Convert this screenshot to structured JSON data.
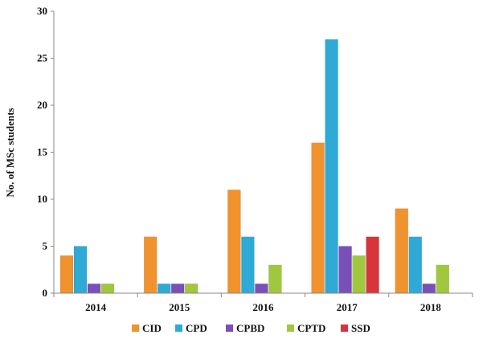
{
  "chart_data": {
    "type": "bar",
    "title": "",
    "xlabel": "",
    "ylabel": "No. of MSc students",
    "ylim": [
      0,
      30
    ],
    "yticks": [
      0,
      5,
      10,
      15,
      20,
      25,
      30
    ],
    "categories": [
      "2014",
      "2015",
      "2016",
      "2017",
      "2018"
    ],
    "grid": false,
    "legend_position": "bottom",
    "series": [
      {
        "name": "CID",
        "color": "#f0922e",
        "values": [
          4,
          6,
          11,
          16,
          9
        ]
      },
      {
        "name": "CPD",
        "color": "#2fa9d6",
        "values": [
          5,
          1,
          6,
          27,
          6
        ]
      },
      {
        "name": "CPBD",
        "color": "#7a4fb8",
        "values": [
          1,
          1,
          1,
          5,
          1
        ]
      },
      {
        "name": "CPTD",
        "color": "#9fc83f",
        "values": [
          1,
          1,
          3,
          4,
          3
        ]
      },
      {
        "name": "SSD",
        "color": "#d8343c",
        "values": [
          0,
          0,
          0,
          6,
          0
        ]
      }
    ]
  }
}
